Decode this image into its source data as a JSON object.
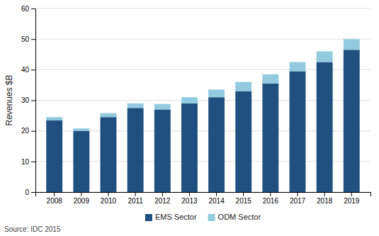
{
  "chart_data": {
    "type": "bar",
    "stacked": true,
    "categories": [
      "2008",
      "2009",
      "2010",
      "2011",
      "2012",
      "2013",
      "2014",
      "2015",
      "2016",
      "2017",
      "2018",
      "2019"
    ],
    "series": [
      {
        "name": "EMS Sector",
        "color": "#1f5080",
        "values": [
          23.5,
          20.0,
          24.5,
          27.5,
          27.0,
          29.0,
          31.0,
          33.0,
          35.5,
          39.5,
          42.5,
          46.5
        ]
      },
      {
        "name": "ODM Sector",
        "color": "#92cadf",
        "values": [
          1.0,
          0.8,
          1.3,
          1.5,
          1.8,
          2.0,
          2.5,
          3.0,
          3.0,
          3.0,
          3.5,
          3.5
        ]
      }
    ],
    "y_label": "Revenues $B",
    "ylim": [
      0,
      60
    ],
    "yticks": [
      0,
      10,
      20,
      30,
      40,
      50,
      60
    ],
    "grid": true,
    "legend": "bottom",
    "annotations": [
      "Source: IDC 2015"
    ]
  }
}
